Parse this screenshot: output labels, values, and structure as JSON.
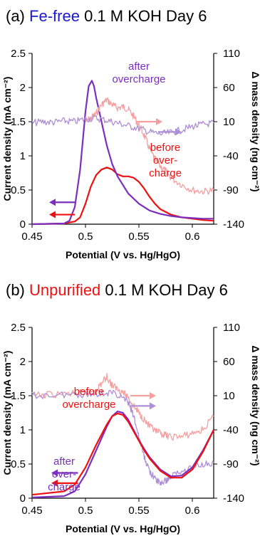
{
  "colors": {
    "purple": "#7b2fbe",
    "light_purple": "#ae8fd3",
    "red": "#ee1111",
    "light_red": "#f4a0a0",
    "blue": "#1a1acc"
  },
  "chart_data": [
    {
      "type": "line",
      "panel_label": "(a)",
      "title_highlight": "Fe-free",
      "title_highlight_color": "#1a1acc",
      "title_rest": "0.1 M KOH Day 6",
      "xlabel": "Potential (V vs. Hg/HgO)",
      "ylabel": "Current density (mA cm⁻²)",
      "y2label": "Δ mass density (ng cm⁻²)",
      "xlim": [
        0.45,
        0.62
      ],
      "ylim": [
        0,
        2.5
      ],
      "y2lim": [
        -140,
        110
      ],
      "xticks": [
        "0.45",
        "0.5",
        "0.55",
        "0.6"
      ],
      "xtick_values": [
        0.45,
        0.5,
        0.55,
        0.6
      ],
      "yticks": [
        "0",
        "0.5",
        "1",
        "1.5",
        "2",
        "2.5"
      ],
      "ytick_values": [
        0,
        0.5,
        1,
        1.5,
        2,
        2.5
      ],
      "y2ticks": [
        "110",
        "60",
        "10",
        "-40",
        "-90",
        "-140"
      ],
      "y2tick_values": [
        110,
        60,
        10,
        -40,
        -90,
        -140
      ],
      "annotations": [
        {
          "lines": [
            "after",
            "overcharge"
          ],
          "color": "#7b2fbe"
        },
        {
          "lines": [
            "before",
            "over-",
            "charge"
          ],
          "color": "#ee1111"
        }
      ],
      "series": [
        {
          "axis": "y",
          "color": "#ee1111",
          "x": [
            0.45,
            0.48,
            0.49,
            0.495,
            0.5,
            0.505,
            0.51,
            0.515,
            0.52,
            0.525,
            0.53,
            0.535,
            0.54,
            0.545,
            0.55,
            0.555,
            0.56,
            0.565,
            0.57,
            0.58,
            0.59,
            0.6,
            0.61,
            0.62
          ],
          "y": [
            0.0,
            0.01,
            0.04,
            0.1,
            0.3,
            0.55,
            0.72,
            0.8,
            0.83,
            0.8,
            0.73,
            0.7,
            0.7,
            0.68,
            0.62,
            0.52,
            0.4,
            0.3,
            0.22,
            0.14,
            0.1,
            0.08,
            0.06,
            0.05
          ]
        },
        {
          "axis": "y",
          "color": "#7b2fbe",
          "x": [
            0.45,
            0.48,
            0.485,
            0.49,
            0.495,
            0.5,
            0.503,
            0.506,
            0.508,
            0.51,
            0.515,
            0.52,
            0.525,
            0.53,
            0.54,
            0.55,
            0.56,
            0.57,
            0.58,
            0.59,
            0.6,
            0.61,
            0.62
          ],
          "y": [
            0.0,
            0.01,
            0.05,
            0.25,
            0.8,
            1.65,
            2.02,
            2.1,
            2.02,
            1.85,
            1.5,
            1.15,
            0.88,
            0.7,
            0.45,
            0.3,
            0.2,
            0.15,
            0.12,
            0.1,
            0.09,
            0.08,
            0.08
          ]
        },
        {
          "axis": "y2",
          "color": "#f4a0a0",
          "noisy": true,
          "x": [
            0.5,
            0.505,
            0.51,
            0.515,
            0.52,
            0.525,
            0.53,
            0.535,
            0.54,
            0.545,
            0.55,
            0.555,
            0.56,
            0.565,
            0.57,
            0.575,
            0.58,
            0.59,
            0.6,
            0.61,
            0.62
          ],
          "y": [
            10,
            15,
            22,
            35,
            42,
            35,
            30,
            32,
            28,
            18,
            5,
            -10,
            -30,
            -45,
            -55,
            -62,
            -72,
            -82,
            -90,
            -92,
            -90
          ]
        },
        {
          "axis": "y2",
          "color": "#ae8fd3",
          "noisy": true,
          "x": [
            0.45,
            0.46,
            0.47,
            0.48,
            0.49,
            0.5,
            0.51,
            0.52,
            0.53,
            0.54,
            0.55,
            0.56,
            0.57,
            0.58,
            0.59,
            0.6,
            0.61,
            0.62
          ],
          "y": [
            8,
            10,
            9,
            11,
            10,
            14,
            15,
            12,
            8,
            4,
            0,
            -5,
            -8,
            -6,
            -2,
            3,
            6,
            8
          ]
        }
      ],
      "arrows": [
        {
          "axis": "y2",
          "x0": 0.548,
          "x1": 0.572,
          "y": 10,
          "color": "#f4a0a0",
          "dir": "right"
        },
        {
          "axis": "y2",
          "x0": 0.568,
          "x1": 0.59,
          "y": -5,
          "color": "#ae8fd3",
          "dir": "right"
        },
        {
          "axis": "y",
          "x0": 0.49,
          "x1": 0.466,
          "y": 0.32,
          "color": "#7b2fbe",
          "dir": "left"
        },
        {
          "axis": "y",
          "x0": 0.49,
          "x1": 0.466,
          "y": 0.14,
          "color": "#ee1111",
          "dir": "left"
        }
      ]
    },
    {
      "type": "line",
      "panel_label": "(b)",
      "title_highlight": "Unpurified",
      "title_highlight_color": "#ee1111",
      "title_rest": "0.1 M KOH Day 6",
      "xlabel": "Potential (V vs. Hg/HgO)",
      "ylabel": "Current density (mA cm⁻²)",
      "y2label": "Δ mass density (ng cm⁻²)",
      "xlim": [
        0.45,
        0.62
      ],
      "ylim": [
        0,
        2.5
      ],
      "y2lim": [
        -140,
        110
      ],
      "xticks": [
        "0.45",
        "0.5",
        "0.55",
        "0.6"
      ],
      "xtick_values": [
        0.45,
        0.5,
        0.55,
        0.6
      ],
      "yticks": [
        "0",
        "0.5",
        "1",
        "1.5",
        "2",
        "2.5"
      ],
      "ytick_values": [
        0,
        0.5,
        1,
        1.5,
        2,
        2.5
      ],
      "y2ticks": [
        "110",
        "60",
        "10",
        "-40",
        "-90",
        "-140"
      ],
      "y2tick_values": [
        110,
        60,
        10,
        -40,
        -90,
        -140
      ],
      "annotations": [
        {
          "lines": [
            "before",
            "overcharge"
          ],
          "color": "#ee1111"
        },
        {
          "lines": [
            "after",
            "over-",
            "charge"
          ],
          "color": "#7b2fbe"
        }
      ],
      "series": [
        {
          "axis": "y2",
          "color": "#f4a0a0",
          "noisy": true,
          "x": [
            0.45,
            0.47,
            0.49,
            0.5,
            0.51,
            0.515,
            0.52,
            0.525,
            0.53,
            0.535,
            0.54,
            0.545,
            0.55,
            0.555,
            0.56,
            0.565,
            0.57,
            0.575,
            0.58,
            0.59,
            0.6,
            0.61,
            0.62
          ],
          "y": [
            10,
            12,
            13,
            14,
            18,
            28,
            38,
            25,
            20,
            15,
            8,
            -5,
            -15,
            -25,
            -35,
            -42,
            -45,
            -48,
            -50,
            -50,
            -45,
            -40,
            -20
          ]
        },
        {
          "axis": "y2",
          "color": "#ae8fd3",
          "noisy": true,
          "x": [
            0.45,
            0.47,
            0.49,
            0.5,
            0.51,
            0.52,
            0.53,
            0.54,
            0.545,
            0.55,
            0.555,
            0.56,
            0.565,
            0.57,
            0.575,
            0.58,
            0.59,
            0.6,
            0.61,
            0.62
          ],
          "y": [
            10,
            11,
            12,
            12,
            13,
            14,
            12,
            0,
            -20,
            -50,
            -80,
            -100,
            -112,
            -118,
            -115,
            -108,
            -100,
            -95,
            -90,
            -88
          ]
        },
        {
          "axis": "y",
          "color": "#7b2fbe",
          "x": [
            0.45,
            0.48,
            0.49,
            0.5,
            0.51,
            0.52,
            0.525,
            0.53,
            0.535,
            0.54,
            0.545,
            0.55,
            0.555,
            0.56,
            0.57,
            0.58,
            0.59,
            0.6,
            0.61,
            0.62
          ],
          "y": [
            0.01,
            0.03,
            0.1,
            0.35,
            0.7,
            1.05,
            1.2,
            1.27,
            1.25,
            1.15,
            1.0,
            0.85,
            0.72,
            0.6,
            0.42,
            0.32,
            0.33,
            0.45,
            0.7,
            1.0
          ]
        },
        {
          "axis": "y",
          "color": "#ee1111",
          "x": [
            0.45,
            0.48,
            0.49,
            0.5,
            0.51,
            0.52,
            0.525,
            0.53,
            0.535,
            0.54,
            0.545,
            0.55,
            0.555,
            0.56,
            0.57,
            0.58,
            0.59,
            0.6,
            0.61,
            0.62
          ],
          "y": [
            0.05,
            0.1,
            0.2,
            0.45,
            0.78,
            1.08,
            1.2,
            1.24,
            1.22,
            1.12,
            0.98,
            0.84,
            0.7,
            0.58,
            0.4,
            0.3,
            0.3,
            0.42,
            0.68,
            1.0
          ]
        }
      ],
      "arrows": [
        {
          "axis": "y2",
          "x0": 0.542,
          "x1": 0.566,
          "y": 10,
          "color": "#f4a0a0",
          "dir": "right"
        },
        {
          "axis": "y2",
          "x0": 0.542,
          "x1": 0.566,
          "y": -5,
          "color": "#ae8fd3",
          "dir": "right"
        },
        {
          "axis": "y",
          "x0": 0.493,
          "x1": 0.468,
          "y": 0.37,
          "color": "#7b2fbe",
          "dir": "left"
        },
        {
          "axis": "y",
          "x0": 0.493,
          "x1": 0.468,
          "y": 0.22,
          "color": "#ee1111",
          "dir": "left"
        }
      ]
    }
  ]
}
